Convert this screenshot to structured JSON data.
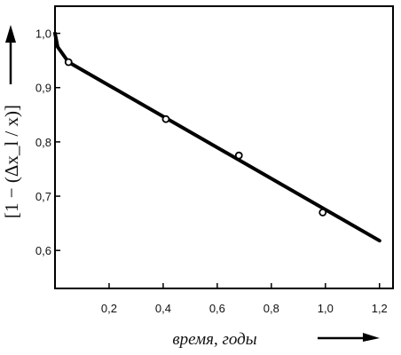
{
  "chart_data": {
    "type": "line",
    "xlabel": "время, годы",
    "ylabel": "[1 − (Δx_l / x)]",
    "xlim": [
      0,
      1.25
    ],
    "ylim": [
      0.53,
      1.05
    ],
    "x_ticks": [
      "0,2",
      "0,4",
      "0,6",
      "0,8",
      "1,0",
      "1,2"
    ],
    "y_ticks": [
      "1,0",
      "0,9",
      "0,8",
      "0,7",
      "0,6"
    ],
    "grid": false,
    "series": [
      {
        "line": [
          {
            "x": 0.0,
            "y": 1.0
          },
          {
            "x": 0.01,
            "y": 0.975
          },
          {
            "x": 0.05,
            "y": 0.947
          },
          {
            "x": 1.2,
            "y": 0.618
          }
        ],
        "points": [
          {
            "x": 0.05,
            "y": 0.947
          },
          {
            "x": 0.41,
            "y": 0.842
          },
          {
            "x": 0.68,
            "y": 0.775
          },
          {
            "x": 0.99,
            "y": 0.67
          }
        ]
      }
    ]
  }
}
